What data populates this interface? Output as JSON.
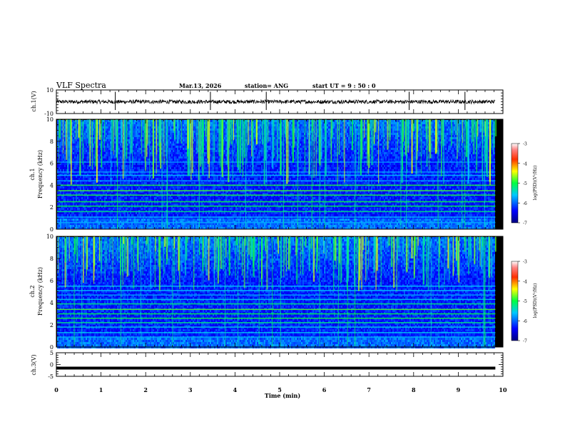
{
  "header": {
    "title": "VLF Spectra",
    "date": "Mar.13, 2026",
    "station": "station= ANG",
    "start": "start  UT =   9 : 50 : 0"
  },
  "chart_data": [
    {
      "type": "line",
      "panel": "ch1-waveform",
      "ylabel": "ch.1(V)",
      "ylim": [
        -10,
        10
      ],
      "yticks": [
        10,
        -10
      ],
      "xlim": [
        0,
        10
      ],
      "series": [
        {
          "x_range": [
            0,
            9.83
          ],
          "baseline": 0,
          "noise_amplitude": 2,
          "spikes_at": [
            1.32,
            3.45,
            4.7,
            7.9,
            9.15
          ]
        }
      ]
    },
    {
      "type": "heatmap",
      "panel": "ch1-spectrogram",
      "ylabel": "ch.1\nFrequency (kHz)",
      "ylim": [
        0,
        10
      ],
      "yticks": [
        0,
        2,
        4,
        6,
        8,
        10
      ],
      "xlim": [
        0,
        9.83
      ],
      "colorbar": {
        "label": "log(PSD)(V²/Hz)",
        "range": [
          -7,
          -3
        ],
        "ticks": [
          -3,
          -4,
          -5,
          -6,
          -7
        ]
      },
      "bands_khz": [
        0.6,
        1.1,
        1.6,
        2.1,
        2.5,
        3.1,
        3.5,
        4.0,
        4.4,
        4.9,
        5.2,
        6.1
      ],
      "bright_band_khz": [
        1.6,
        4.2
      ]
    },
    {
      "type": "heatmap",
      "panel": "ch2-spectrogram",
      "ylabel": "ch.2\nFrequency (kHz)",
      "ylim": [
        0,
        10
      ],
      "yticks": [
        0,
        2,
        4,
        6,
        8,
        10
      ],
      "xlim": [
        0,
        9.83
      ],
      "colorbar": {
        "label": "log(PSD)(V²/Hz)",
        "range": [
          -7,
          -3
        ],
        "ticks": [
          -3,
          -4,
          -5,
          -6,
          -7
        ]
      },
      "bands_khz": [
        0.9,
        1.3,
        1.8,
        2.2,
        2.6,
        3.0,
        3.4,
        3.9,
        4.3,
        4.7,
        5.1,
        5.5
      ],
      "bright_band_khz": [
        2.2,
        3.9
      ]
    },
    {
      "type": "line",
      "panel": "ch3-waveform",
      "ylabel": "ch.3(V)",
      "ylim": [
        -5,
        5
      ],
      "yticks": [
        5,
        0,
        -5
      ],
      "xlim": [
        0,
        10
      ],
      "xlabel": "Time (min)",
      "xticks": [
        0,
        1,
        2,
        3,
        4,
        5,
        6,
        7,
        8,
        9,
        10
      ],
      "series": [
        {
          "x_range": [
            0,
            9.83
          ],
          "constant": -1.5
        }
      ]
    }
  ]
}
